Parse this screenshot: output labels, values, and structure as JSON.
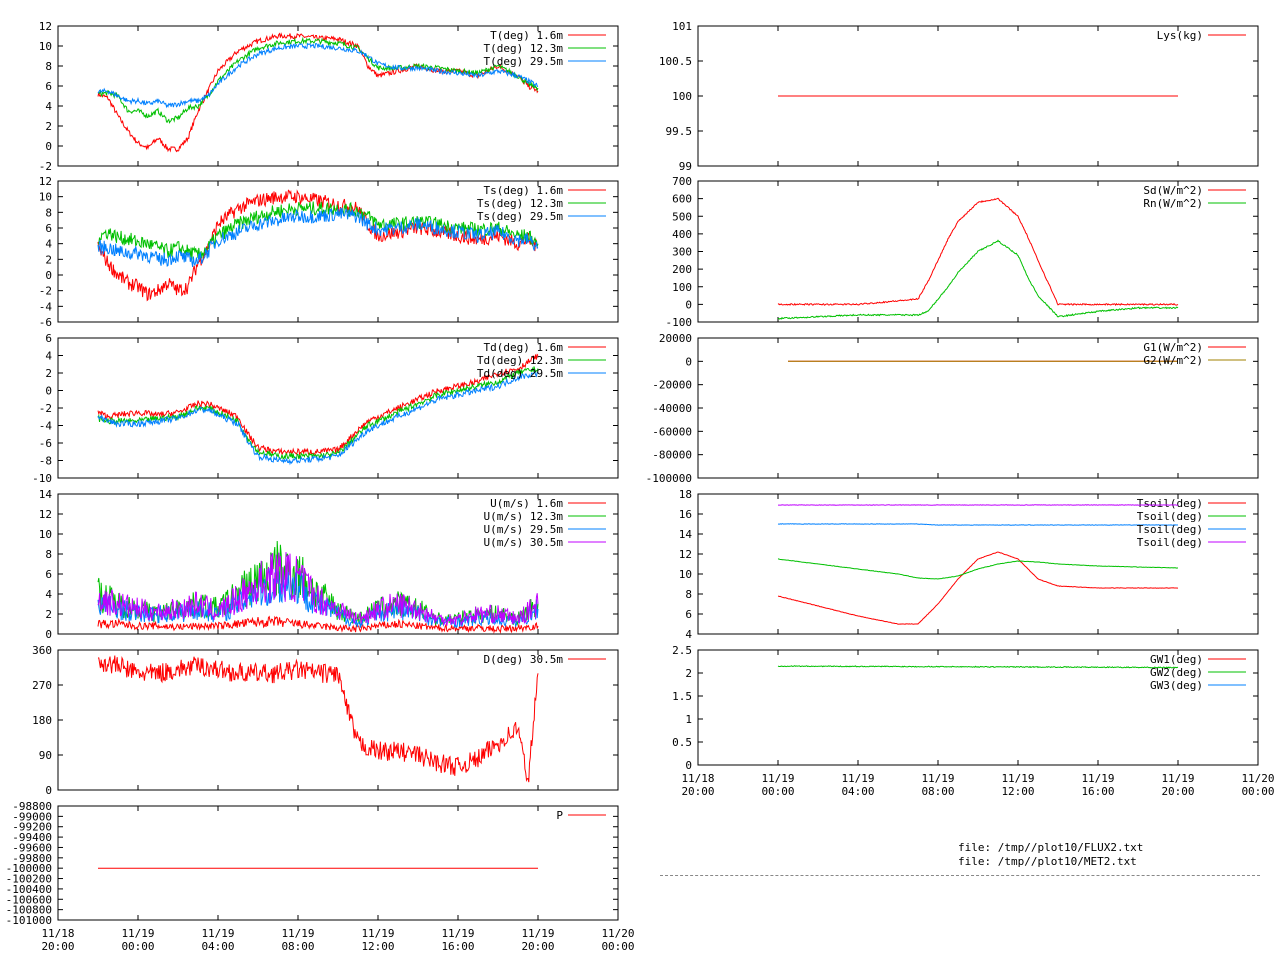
{
  "time_axis": {
    "ticks": [
      {
        "line1": "11/18",
        "line2": "20:00"
      },
      {
        "line1": "11/19",
        "line2": "00:00"
      },
      {
        "line1": "11/19",
        "line2": "04:00"
      },
      {
        "line1": "11/19",
        "line2": "08:00"
      },
      {
        "line1": "11/19",
        "line2": "12:00"
      },
      {
        "line1": "11/19",
        "line2": "16:00"
      },
      {
        "line1": "11/19",
        "line2": "20:00"
      },
      {
        "line1": "11/20",
        "line2": "00:00"
      }
    ]
  },
  "files": [
    "file: /tmp//plot10/FLUX2.txt",
    "file: /tmp//plot10/MET2.txt"
  ],
  "colors": {
    "red": "#ff0000",
    "green": "#00c000",
    "blue": "#0080ff",
    "purple": "#c000ff",
    "olive": "#a08000"
  },
  "chart_data": [
    {
      "id": "temperature",
      "type": "line",
      "ylim": [
        -2,
        12
      ],
      "yticks": [
        "12",
        "10",
        "8",
        "6",
        "4",
        "2",
        "0",
        "-2"
      ],
      "x_hours": [
        0,
        1,
        2,
        2.5,
        3,
        3.5,
        4,
        4.5,
        5,
        5.5,
        6,
        6.5,
        7,
        7.5,
        8,
        9,
        10,
        11,
        12,
        13,
        14,
        15,
        15.5,
        16,
        17,
        18,
        19,
        20,
        21,
        22,
        23,
        23.5,
        24
      ],
      "series": [
        {
          "name": "T(deg)  1.6m",
          "color": "#ff0000",
          "values": [
            null,
            null,
            5.2,
            4.8,
            3.0,
            1.5,
            0.3,
            -0.2,
            0.8,
            -0.3,
            -0.3,
            0.8,
            3.5,
            5.5,
            7.5,
            9.5,
            10.5,
            11.0,
            11.0,
            10.8,
            10.7,
            10.0,
            8.0,
            7.0,
            7.5,
            8.0,
            7.5,
            7.5,
            7.0,
            8.0,
            7.0,
            6.0,
            5.5
          ]
        },
        {
          "name": "T(deg) 12.3m",
          "color": "#00c000",
          "values": [
            null,
            null,
            5.2,
            5.3,
            5.0,
            3.5,
            3.5,
            3.0,
            3.5,
            2.5,
            2.8,
            3.8,
            4.0,
            5.0,
            6.5,
            8.5,
            9.8,
            10.3,
            10.5,
            10.5,
            10.3,
            9.8,
            8.8,
            7.8,
            7.8,
            8.0,
            7.8,
            7.5,
            7.3,
            8.0,
            7.0,
            6.2,
            5.8
          ]
        },
        {
          "name": "T(deg) 29.5m",
          "color": "#0080ff",
          "values": [
            null,
            null,
            5.4,
            5.5,
            5.0,
            4.5,
            4.5,
            4.2,
            4.5,
            4.0,
            4.2,
            4.5,
            4.5,
            5.0,
            6.2,
            8.0,
            9.2,
            9.8,
            10.0,
            10.0,
            9.8,
            9.5,
            9.0,
            8.2,
            7.8,
            7.8,
            7.5,
            7.3,
            7.0,
            7.5,
            7.0,
            6.5,
            6.0
          ]
        }
      ]
    },
    {
      "id": "surface-temperature",
      "type": "line",
      "ylim": [
        -6,
        12
      ],
      "yticks": [
        "12",
        "10",
        "8",
        "6",
        "4",
        "2",
        "0",
        "-2",
        "-4",
        "-6"
      ],
      "x_hours": [
        0,
        1,
        2,
        2.5,
        3,
        3.5,
        4,
        4.5,
        5,
        5.5,
        6,
        6.5,
        7,
        7.5,
        8,
        9,
        10,
        11,
        12,
        13,
        14,
        15,
        15.5,
        16,
        17,
        18,
        19,
        20,
        21,
        22,
        23,
        23.5,
        24
      ],
      "series": [
        {
          "name": "Ts(deg)  1.6m",
          "color": "#ff0000",
          "values": [
            null,
            null,
            3.5,
            1.5,
            0,
            -1.0,
            -1.5,
            -2.5,
            -2.0,
            -1.0,
            -2.0,
            -1.5,
            1.5,
            3.5,
            6.5,
            8.5,
            9.5,
            10.0,
            10.0,
            9.5,
            9.0,
            8.5,
            6.5,
            5.0,
            5.5,
            6.0,
            5.5,
            5.0,
            4.5,
            5.0,
            4.0,
            4.5,
            3.5
          ]
        },
        {
          "name": "Ts(deg) 12.3m",
          "color": "#00c000",
          "values": [
            null,
            null,
            4.8,
            5.5,
            4.8,
            4.6,
            4.2,
            4.0,
            3.5,
            3.0,
            3.5,
            3.0,
            2.5,
            3.5,
            5.0,
            6.5,
            7.5,
            8.2,
            8.5,
            8.5,
            8.5,
            8.2,
            7.5,
            6.5,
            6.5,
            6.8,
            6.5,
            6.0,
            5.8,
            6.0,
            5.0,
            5.0,
            4.0
          ]
        },
        {
          "name": "Ts(deg) 29.5m",
          "color": "#0080ff",
          "values": [
            null,
            null,
            3.5,
            3.5,
            3.0,
            2.8,
            2.8,
            2.5,
            2.0,
            2.0,
            2.5,
            2.0,
            1.8,
            3.0,
            4.5,
            5.5,
            6.5,
            7.0,
            7.5,
            7.5,
            7.8,
            7.5,
            6.5,
            5.8,
            6.0,
            6.5,
            6.0,
            5.5,
            5.0,
            5.5,
            4.5,
            4.5,
            3.5
          ]
        }
      ]
    },
    {
      "id": "dew-point",
      "type": "line",
      "ylim": [
        -10,
        6
      ],
      "yticks": [
        "6",
        "4",
        "2",
        "0",
        "-2",
        "-4",
        "-6",
        "-8",
        "-10"
      ],
      "x_hours": [
        0,
        1,
        2,
        2.5,
        3,
        4,
        5,
        6,
        7,
        7.5,
        8,
        9,
        9.5,
        10,
        11,
        12,
        13,
        14,
        15,
        15.5,
        16,
        17,
        18,
        19,
        20,
        21,
        22,
        23,
        24
      ],
      "series": [
        {
          "name": "Td(deg)  1.6m",
          "color": "#ff0000",
          "values": [
            null,
            null,
            -2.5,
            -3.0,
            -2.8,
            -2.5,
            -2.8,
            -2.5,
            -1.5,
            -1.5,
            -2.0,
            -3.0,
            -5.0,
            -6.5,
            -7.0,
            -7.0,
            -7.0,
            -6.8,
            -4.5,
            -3.5,
            -3.0,
            -2.0,
            -1.0,
            0,
            0.5,
            1.0,
            2.0,
            2.5,
            4.0
          ]
        },
        {
          "name": "Td(deg) 12.3m",
          "color": "#00c000",
          "values": [
            null,
            null,
            -3.2,
            -3.5,
            -3.5,
            -3.5,
            -3.2,
            -3.0,
            -2.0,
            -2.0,
            -2.5,
            -3.5,
            -5.5,
            -7.0,
            -7.5,
            -7.5,
            -7.5,
            -7.2,
            -5.0,
            -4.0,
            -3.5,
            -2.5,
            -1.5,
            -0.5,
            0,
            0.5,
            1.0,
            2.0,
            2.5
          ]
        },
        {
          "name": "Td(deg) 29.5m",
          "color": "#0080ff",
          "values": [
            null,
            null,
            -3.0,
            -3.5,
            -3.8,
            -3.8,
            -3.5,
            -3.2,
            -2.2,
            -2.2,
            -2.8,
            -3.8,
            -5.8,
            -7.5,
            -8.0,
            -8.0,
            -7.8,
            -7.5,
            -5.5,
            -4.5,
            -4.0,
            -3.0,
            -2.0,
            -1.0,
            -0.5,
            0,
            0.5,
            1.5,
            2.0
          ]
        }
      ]
    },
    {
      "id": "wind-speed",
      "type": "line",
      "ylim": [
        0,
        14
      ],
      "yticks": [
        "14",
        "12",
        "10",
        "8",
        "6",
        "4",
        "2",
        "0"
      ],
      "x_hours": [
        0,
        1,
        2,
        3,
        4,
        5,
        6,
        7,
        8,
        9,
        10,
        11,
        12,
        13,
        14,
        15,
        16,
        17,
        18,
        19,
        20,
        21,
        22,
        23,
        24
      ],
      "series": [
        {
          "name": "U(m/s)  1.6m",
          "color": "#ff0000",
          "values": [
            null,
            null,
            1.0,
            1.0,
            0.8,
            0.8,
            0.7,
            0.8,
            0.8,
            1.0,
            1.2,
            1.2,
            1.0,
            0.8,
            0.6,
            0.5,
            0.8,
            1.0,
            0.8,
            0.6,
            0.6,
            0.6,
            0.5,
            0.6,
            0.8
          ]
        },
        {
          "name": "U(m/s) 12.3m",
          "color": "#00c000",
          "values": [
            null,
            null,
            4.0,
            3.0,
            2.5,
            2.0,
            2.5,
            3.0,
            2.5,
            4.0,
            5.5,
            6.5,
            6.0,
            4.0,
            2.5,
            1.5,
            2.5,
            3.0,
            2.5,
            1.5,
            1.5,
            2.0,
            2.0,
            1.5,
            3.0
          ]
        },
        {
          "name": "U(m/s) 29.5m",
          "color": "#0080ff",
          "values": [
            null,
            null,
            3.0,
            2.5,
            2.0,
            2.0,
            2.0,
            2.5,
            2.0,
            3.0,
            4.5,
            5.0,
            5.0,
            3.0,
            2.0,
            1.0,
            2.0,
            2.5,
            2.0,
            1.2,
            1.2,
            1.5,
            1.5,
            1.2,
            2.5
          ]
        },
        {
          "name": "U(m/s) 30.5m",
          "color": "#c000ff",
          "values": [
            null,
            null,
            3.5,
            3.0,
            2.5,
            2.2,
            2.5,
            3.0,
            2.2,
            3.5,
            5.0,
            6.0,
            5.5,
            3.5,
            2.5,
            1.5,
            2.5,
            3.0,
            2.5,
            1.5,
            1.5,
            2.0,
            2.0,
            1.5,
            3.0
          ]
        }
      ]
    },
    {
      "id": "wind-direction",
      "type": "line",
      "ylim": [
        0,
        360
      ],
      "yticks": [
        "360",
        "270",
        "180",
        "90",
        "0"
      ],
      "x_hours": [
        0,
        1,
        2,
        3,
        4,
        5,
        6,
        7,
        8,
        9,
        10,
        11,
        12,
        13,
        14,
        14.5,
        15,
        16,
        17,
        18,
        19,
        20,
        21,
        22,
        23,
        23.5,
        24
      ],
      "series": [
        {
          "name": "D(deg)  30.5m",
          "color": "#ff0000",
          "values": [
            null,
            null,
            330,
            320,
            300,
            300,
            310,
            320,
            310,
            300,
            300,
            300,
            310,
            300,
            300,
            200,
            120,
            100,
            100,
            90,
            70,
            60,
            80,
            120,
            160,
            20,
            300
          ]
        }
      ]
    },
    {
      "id": "pressure",
      "type": "line",
      "ylim": [
        -101000,
        -98800
      ],
      "yticks": [
        "-101000",
        "-100800",
        "-100600",
        "-100400",
        "-100200",
        "-100000",
        "-99800",
        "-99600",
        "-99400",
        "-99200",
        "-99000",
        "-98800"
      ],
      "x_hours": [
        2,
        24
      ],
      "series": [
        {
          "name": "P",
          "color": "#ff0000",
          "values": [
            -100000,
            -100000
          ]
        }
      ]
    },
    {
      "id": "lysimeter",
      "type": "line",
      "ylim": [
        99,
        101
      ],
      "yticks": [
        "101",
        "100.5",
        "100",
        "99.5",
        "99"
      ],
      "x_hours": [
        4,
        24
      ],
      "series": [
        {
          "name": "Lys(kg)",
          "color": "#ff0000",
          "values": [
            100,
            100
          ]
        }
      ]
    },
    {
      "id": "radiation",
      "type": "line",
      "ylim": [
        -100,
        700
      ],
      "yticks": [
        "700",
        "600",
        "500",
        "400",
        "300",
        "200",
        "100",
        "0",
        "-100"
      ],
      "x_hours": [
        4,
        8,
        11,
        11.5,
        12,
        12.5,
        13,
        14,
        15,
        16,
        16.5,
        17,
        18,
        20,
        22,
        24
      ],
      "series": [
        {
          "name": "Sd(W/m^2)",
          "color": "#ff0000",
          "values": [
            0,
            0,
            30,
            130,
            250,
            370,
            470,
            580,
            600,
            500,
            380,
            250,
            0,
            0,
            0,
            0
          ]
        },
        {
          "name": "Rn(W/m^2)",
          "color": "#00c000",
          "values": [
            -80,
            -60,
            -60,
            -40,
            30,
            100,
            180,
            300,
            360,
            280,
            150,
            50,
            -70,
            -40,
            -20,
            -20
          ]
        }
      ]
    },
    {
      "id": "ground-heat-flux",
      "type": "line",
      "ylim": [
        -100000,
        20000
      ],
      "yticks": [
        "20000",
        "0",
        "-20000",
        "-40000",
        "-60000",
        "-80000",
        "-100000"
      ],
      "x_hours": [
        4.5,
        24
      ],
      "series": [
        {
          "name": "G1(W/m^2)",
          "color": "#ff0000",
          "values": [
            0,
            0
          ]
        },
        {
          "name": "G2(W/m^2)",
          "color": "#a08000",
          "values": [
            0,
            0
          ]
        }
      ]
    },
    {
      "id": "soil-temperature",
      "type": "line",
      "ylim": [
        4,
        18
      ],
      "yticks": [
        "18",
        "16",
        "14",
        "12",
        "10",
        "8",
        "6",
        "4"
      ],
      "x_hours": [
        4,
        6,
        8,
        10,
        11,
        12,
        13,
        14,
        15,
        16,
        17,
        18,
        20,
        22,
        24
      ],
      "series": [
        {
          "name": "Tsoil(deg)",
          "color": "#ff0000",
          "values": [
            7.8,
            6.8,
            5.8,
            5.0,
            5.0,
            7.0,
            9.5,
            11.5,
            12.2,
            11.5,
            9.5,
            8.8,
            8.6,
            8.6,
            8.6
          ]
        },
        {
          "name": "Tsoil(deg)",
          "color": "#00c000",
          "values": [
            11.5,
            11.0,
            10.5,
            10.0,
            9.6,
            9.5,
            9.8,
            10.5,
            11.0,
            11.3,
            11.2,
            11.0,
            10.8,
            10.7,
            10.6
          ]
        },
        {
          "name": "Tsoil(deg)",
          "color": "#0080ff",
          "values": [
            15.0,
            15.0,
            15.0,
            15.0,
            15.0,
            14.9,
            14.9,
            14.9,
            14.9,
            14.9,
            14.9,
            14.9,
            14.9,
            14.9,
            14.9
          ]
        },
        {
          "name": "Tsoil(deg)",
          "color": "#c000ff",
          "values": [
            16.9,
            16.9,
            16.9,
            16.9,
            16.9,
            16.9,
            16.9,
            16.9,
            16.9,
            16.9,
            16.9,
            16.9,
            16.9,
            16.9,
            16.9
          ]
        }
      ]
    },
    {
      "id": "ground-water",
      "type": "line",
      "ylim": [
        0,
        2.5
      ],
      "yticks": [
        "2.5",
        "2",
        "1.5",
        "1",
        "0.5",
        "0"
      ],
      "x_hours": [
        4,
        24
      ],
      "series": [
        {
          "name": "GW1(deg)",
          "color": "#ff0000",
          "values": [
            null,
            null
          ]
        },
        {
          "name": "GW2(deg)",
          "color": "#00c000",
          "values": [
            2.15,
            2.12
          ]
        },
        {
          "name": "GW3(deg)",
          "color": "#0080ff",
          "values": [
            null,
            null
          ]
        }
      ]
    }
  ]
}
